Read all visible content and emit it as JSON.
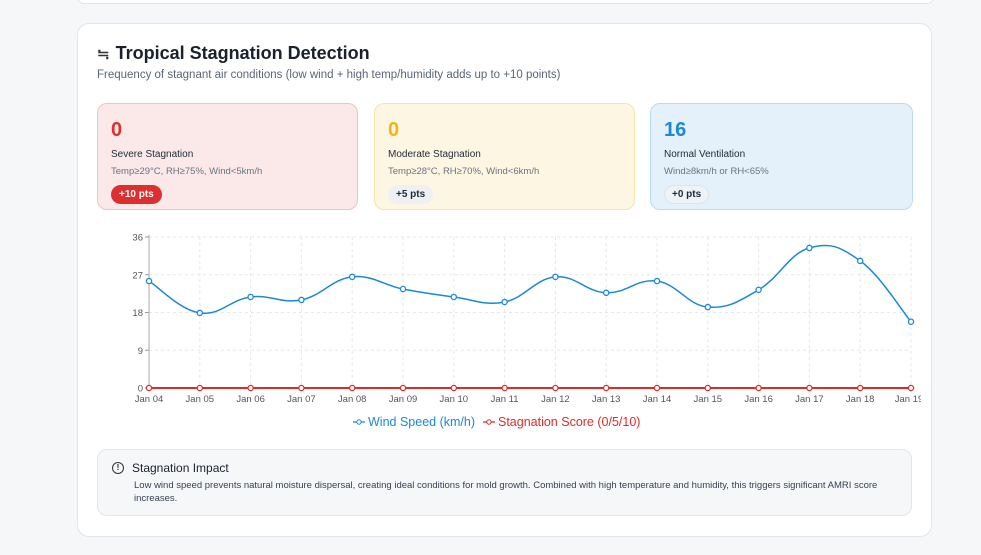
{
  "section": {
    "title": "Tropical Stagnation Detection",
    "title_icon": "wind-icon",
    "subtitle": "Frequency of stagnant air conditions (low wind + high temp/humidity adds up to +10 points)"
  },
  "stats": [
    {
      "count": "0",
      "label": "Severe Stagnation",
      "condition": "Temp≥29°C, RH≥75%, Wind<5km/h",
      "points": "+10 pts",
      "color": "#dc2f2f"
    },
    {
      "count": "0",
      "label": "Moderate Stagnation",
      "condition": "Temp≥28°C, RH≥70%, Wind<6km/h",
      "points": "+5 pts",
      "color": "#f5b50f"
    },
    {
      "count": "16",
      "label": "Normal Ventilation",
      "condition": "Wind≥8km/h or RH<65%",
      "points": "+0 pts",
      "color": "#1b88d8"
    }
  ],
  "chart_data": {
    "type": "line",
    "categories": [
      "Jan 04",
      "Jan 05",
      "Jan 06",
      "Jan 07",
      "Jan 08",
      "Jan 09",
      "Jan 10",
      "Jan 11",
      "Jan 12",
      "Jan 13",
      "Jan 14",
      "Jan 15",
      "Jan 16",
      "Jan 17",
      "Jan 18",
      "Jan 19"
    ],
    "series": [
      {
        "name": "Wind Speed (km/h)",
        "color": "#1b88d8",
        "values": [
          25.5,
          17.9,
          21.7,
          21.0,
          26.5,
          23.6,
          21.7,
          20.5,
          26.5,
          22.7,
          25.5,
          19.3,
          23.4,
          33.4,
          30.3,
          15.8
        ]
      },
      {
        "name": "Stagnation Score (0/5/10)",
        "color": "#e02b2b",
        "values": [
          0,
          0,
          0,
          0,
          0,
          0,
          0,
          0,
          0,
          0,
          0,
          0,
          0,
          0,
          0,
          0
        ]
      }
    ],
    "ylim": [
      0,
      36
    ],
    "yticks": [
      "0",
      "9",
      "18",
      "27",
      "36"
    ],
    "grid": true,
    "legend": "bottom"
  },
  "impact": {
    "title": "Stagnation Impact",
    "icon": "alert-circle-icon",
    "text": "Low wind speed prevents natural moisture dispersal, creating ideal conditions for mold growth. Combined with high temperature and humidity, this triggers significant AMRI score increases."
  }
}
